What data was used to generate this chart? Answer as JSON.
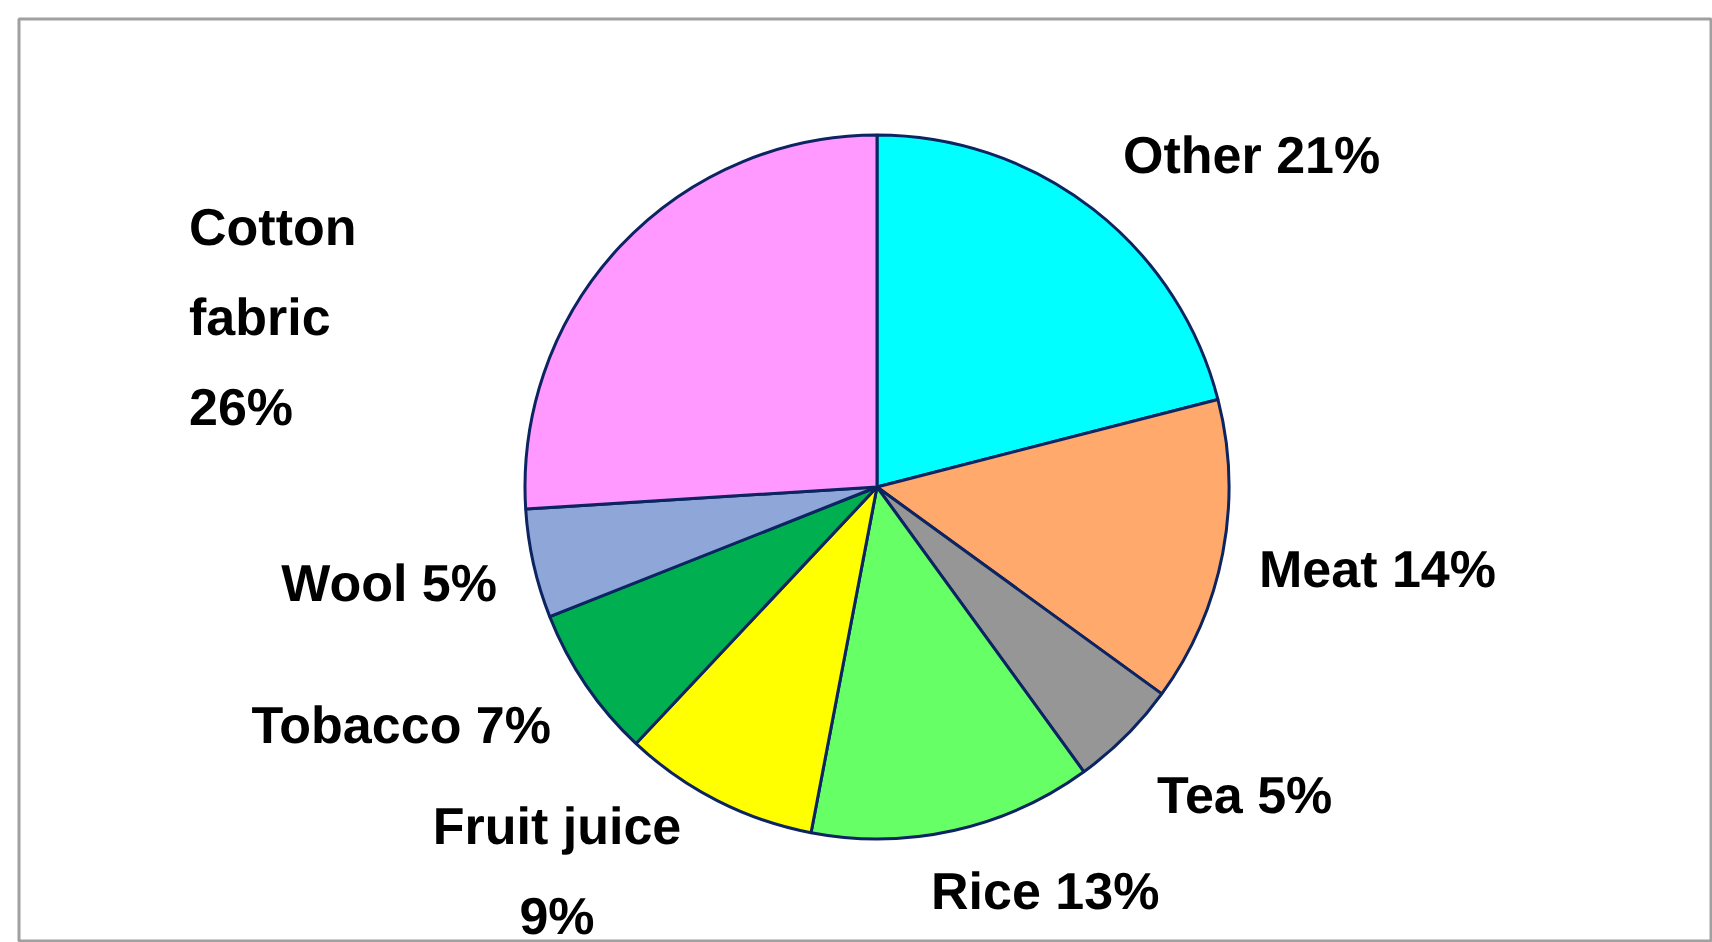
{
  "chart_data": {
    "type": "pie",
    "categories": [
      "Other",
      "Meat",
      "Tea",
      "Rice",
      "Fruit juice",
      "Tobacco",
      "Wool",
      "Cotton fabric"
    ],
    "values": [
      21,
      14,
      5,
      13,
      9,
      7,
      5,
      26
    ],
    "colors": [
      "#00ffff",
      "#ffa96c",
      "#969696",
      "#66ff66",
      "#ffff00",
      "#00b050",
      "#8ea6d8",
      "#ff99ff"
    ],
    "value_labels": [
      "21%",
      "14%",
      "5%",
      "13%",
      "9%",
      "7%",
      "5%",
      "26%"
    ]
  }
}
